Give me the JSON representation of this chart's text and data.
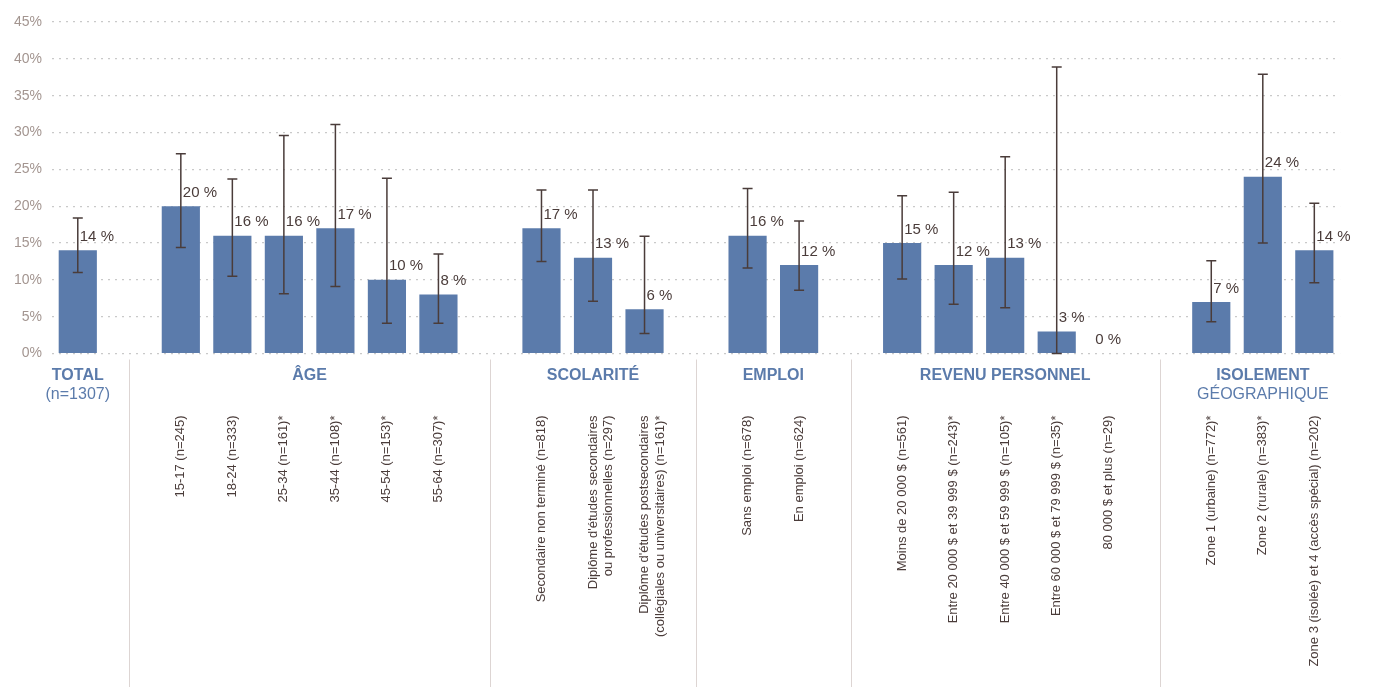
{
  "chart_data": {
    "type": "bar",
    "categories": [
      null,
      null,
      "15-17 (n=245)",
      "18-24 (n=333)",
      "25-34 (n=161)*",
      "35-44 (n=108)*",
      "45-54 (n=153)*",
      "55-64 (n=307)*",
      null,
      "Secondaire non terminé (n=818)",
      "Diplôme d'études secondaires\nou professionnelles (n=297)",
      "Diplôme d'études postsecondaires\n(collégiales ou universitaires) (n=161)*",
      null,
      "Sans emploi (n=678)",
      "En emploi (n=624)",
      null,
      "Moins de 20 000 $ (n=561)",
      "Entre 20 000 $ et 39 999 $ (n=243)*",
      "Entre 40 000 $ et 59 999 $ (n=105)*",
      "Entre 60 000 $ et 79 999 $ (n=35)*",
      "80 000 $ et plus (n=29)",
      null,
      "Zone 1 (urbaine) (n=772)*",
      "Zone 2 (rurale) (n=383)*",
      "Zone 3 (isolée) et 4 (accès spécial) (n=202)"
    ],
    "values": [
      14,
      null,
      20,
      16,
      16,
      17,
      10,
      8,
      null,
      17,
      13,
      6,
      null,
      16,
      12,
      null,
      15,
      12,
      13,
      3,
      0,
      null,
      7,
      24,
      14
    ],
    "value_labels": [
      "14 %",
      null,
      "20 %",
      "16 %",
      "16 %",
      "17 %",
      "10 %",
      "8 %",
      null,
      "17 %",
      "13 %",
      "6 %",
      null,
      "16 %",
      "12 %",
      null,
      "15 %",
      "12 %",
      "13 %",
      "3 %",
      "0 %",
      null,
      "7 %",
      "24 %",
      "14 %"
    ],
    "errors": [
      [
        11,
        18.4
      ],
      null,
      [
        14.4,
        27.1
      ],
      [
        10.5,
        23.7
      ],
      [
        8.1,
        29.6
      ],
      [
        9.1,
        31.1
      ],
      [
        4.1,
        23.8
      ],
      [
        4.1,
        13.5
      ],
      null,
      [
        12.5,
        22.2
      ],
      [
        7.1,
        22.2
      ],
      [
        2.7,
        15.9
      ],
      null,
      [
        11.6,
        22.4
      ],
      [
        8.6,
        18
      ],
      null,
      [
        10.1,
        21.4
      ],
      [
        6.7,
        21.9
      ],
      [
        6.2,
        26.7
      ],
      [
        0,
        38.9
      ],
      null,
      null,
      [
        4.3,
        12.6
      ],
      [
        15,
        37.9
      ],
      [
        9.6,
        20.4
      ]
    ],
    "color": "#5b7bab",
    "ylim": [
      0,
      45
    ],
    "yticks": [
      {
        "value": 0,
        "label": "0%"
      },
      {
        "value": 5,
        "label": "5%"
      },
      {
        "value": 10,
        "label": "10%"
      },
      {
        "value": 15,
        "label": "15%"
      },
      {
        "value": 20,
        "label": "20%"
      },
      {
        "value": 25,
        "label": "25%"
      },
      {
        "value": 30,
        "label": "30%"
      },
      {
        "value": 35,
        "label": "35%"
      },
      {
        "value": 40,
        "label": "40%"
      },
      {
        "value": 45,
        "label": "45%"
      }
    ],
    "grid": "y",
    "annotations": [
      "TOTAL\n(n=1307)",
      "ÂGE",
      "SCOLARITÉ",
      "EMPLOI",
      "REVENU PERSONNEL",
      "ISOLEMENT\nGÉOGRAPHIQUE"
    ]
  }
}
